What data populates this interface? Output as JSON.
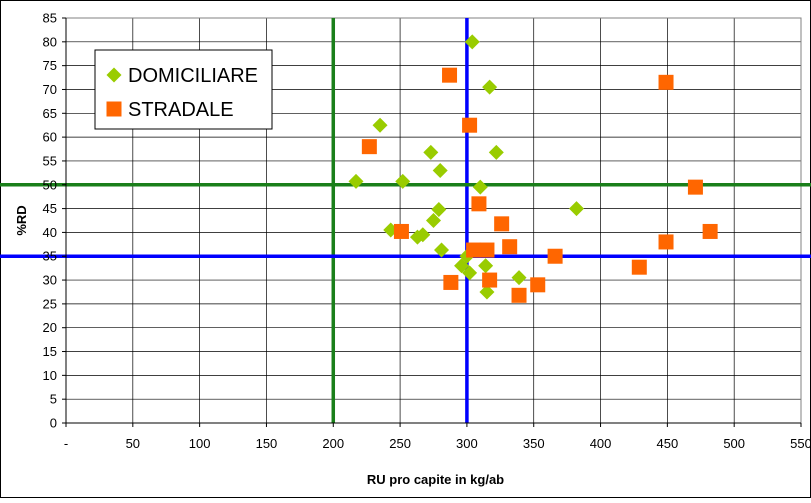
{
  "chart_data": {
    "type": "scatter",
    "title": "",
    "xlabel": "RU pro capite in kg/ab",
    "ylabel": "%RD",
    "xlim": [
      0,
      550
    ],
    "ylim": [
      0,
      85
    ],
    "x_ticks": [
      0,
      50,
      100,
      150,
      200,
      250,
      300,
      350,
      400,
      450,
      500,
      550
    ],
    "x_tick_labels": [
      "-",
      "50",
      "100",
      "150",
      "200",
      "250",
      "300",
      "350",
      "400",
      "450",
      "500",
      "550"
    ],
    "y_ticks": [
      0,
      5,
      10,
      15,
      20,
      25,
      30,
      35,
      40,
      45,
      50,
      55,
      60,
      65,
      70,
      75,
      80,
      85
    ],
    "y_tick_labels": [
      "0",
      "5",
      "10",
      "15",
      "20",
      "25",
      "30",
      "35",
      "40",
      "45",
      "50",
      "55",
      "60",
      "65",
      "70",
      "75",
      "80",
      "85"
    ],
    "grid": true,
    "legend": "top-left",
    "reference_lines": {
      "vertical": [
        {
          "x": 200,
          "color": "#1a7f1a"
        },
        {
          "x": 300,
          "color": "#0000ff"
        }
      ],
      "horizontal": [
        {
          "y": 50,
          "color": "#1a7f1a"
        },
        {
          "y": 35,
          "color": "#0000ff"
        }
      ]
    },
    "series": [
      {
        "name": "DOMICILIARE",
        "marker": "diamond",
        "color": "#99cc00",
        "x": [
          304,
          317,
          235,
          273,
          322,
          280,
          217,
          252,
          310,
          382,
          279,
          275,
          243,
          267,
          263,
          281,
          300,
          296,
          302,
          314,
          339,
          315
        ],
        "y": [
          80,
          70.5,
          62.5,
          56.8,
          56.8,
          53,
          50.7,
          50.7,
          49.5,
          45,
          44.8,
          42.5,
          40.5,
          39.5,
          39,
          36.3,
          35,
          33,
          31.5,
          33,
          30.5,
          27.5
        ]
      },
      {
        "name": "STRADALE",
        "marker": "square",
        "color": "#ff6600",
        "x": [
          287,
          449,
          227,
          302,
          471,
          309,
          326,
          482,
          251,
          449,
          332,
          305,
          315,
          366,
          429,
          317,
          288,
          353,
          339
        ],
        "y": [
          73,
          71.5,
          58,
          62.5,
          49.5,
          46,
          41.8,
          40.2,
          40.2,
          38,
          37,
          36.3,
          36.3,
          35,
          32.7,
          30,
          29.5,
          29,
          26.8
        ]
      }
    ]
  }
}
